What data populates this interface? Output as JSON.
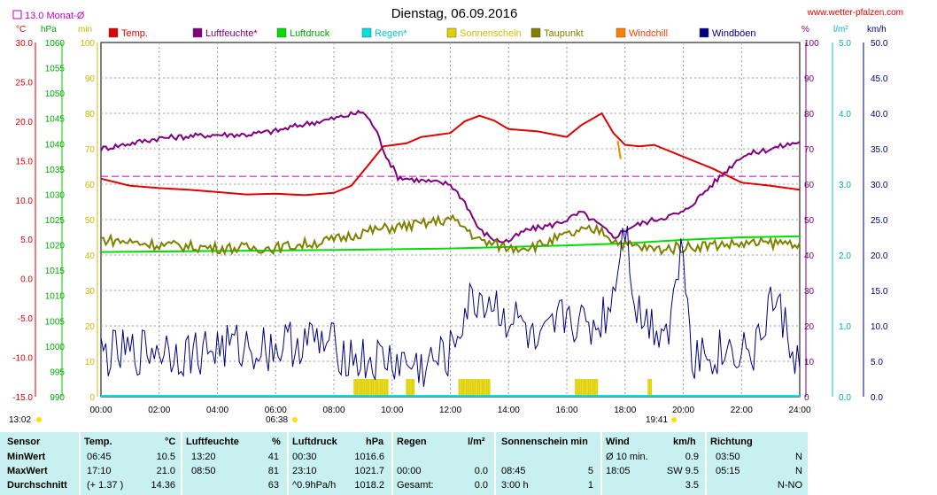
{
  "header": {
    "title": "Dienstag, 06.09.2016",
    "website": "www.wetter-pfalzen.com",
    "monthly_avg": "13.0 Monat-Ø"
  },
  "axes": {
    "temp_unit": "°C",
    "pressure_unit": "hPa",
    "minutes_unit": "min",
    "humidity_unit": "%",
    "rain_unit": "l/m²",
    "wind_unit": "km/h",
    "temp_ticks": [
      "30.0",
      "25.0",
      "20.0",
      "15.0",
      "10.0",
      "5.0",
      "0.0",
      "-5.0",
      "-10.0",
      "-15.0"
    ],
    "pressure_ticks": [
      "1060",
      "1055",
      "1050",
      "1045",
      "1040",
      "1035",
      "1030",
      "1025",
      "1020",
      "1015",
      "1010",
      "1005",
      "1000",
      "995",
      "990"
    ],
    "minutes_ticks": [
      "100",
      "90",
      "80",
      "70",
      "60",
      "50",
      "40",
      "30",
      "20",
      "10",
      "0"
    ],
    "humidity_ticks": [
      "100",
      "90",
      "80",
      "70",
      "60",
      "50",
      "40",
      "30",
      "20",
      "10",
      "0"
    ],
    "rain_ticks": [
      "5.0",
      "4.0",
      "3.0",
      "2.0",
      "1.0",
      "0.0"
    ],
    "wind_ticks": [
      "50.0",
      "45.0",
      "40.0",
      "35.0",
      "30.0",
      "25.0",
      "20.0",
      "15.0",
      "10.0",
      "5.0",
      "0.0"
    ],
    "time_ticks": [
      "00:00",
      "02:00",
      "04:00",
      "06:00",
      "08:00",
      "10:00",
      "12:00",
      "14:00",
      "16:00",
      "18:00",
      "20:00",
      "22:00",
      "24:00"
    ],
    "sunrise": "06:38",
    "sunset": "19:41",
    "day_length": "13:02"
  },
  "legend": [
    {
      "label": "Temp.",
      "color": "#e00000",
      "text_color": "#e00000"
    },
    {
      "label": "Luftfeuchte*",
      "color": "#800080",
      "text_color": "#800080"
    },
    {
      "label": "Luftdruck",
      "color": "#00dd00",
      "text_color": "#00aa00"
    },
    {
      "label": "Regen*",
      "color": "#00e0e0",
      "text_color": "#00c8c8"
    },
    {
      "label": "Sonnenschein",
      "color": "#e0d000",
      "text_color": "#d0c000"
    },
    {
      "label": "Taupunkt",
      "color": "#808000",
      "text_color": "#808000"
    },
    {
      "label": "Windchill",
      "color": "#ff8000",
      "text_color": "#ff4000"
    },
    {
      "label": "Windböen",
      "color": "#000080",
      "text_color": "#000080"
    }
  ],
  "chart_data": {
    "type": "line",
    "x_unit": "hours",
    "x_range": [
      0,
      24
    ],
    "series": [
      {
        "name": "Temp.",
        "axis": "°C",
        "points": [
          [
            0,
            12.7
          ],
          [
            1,
            11.8
          ],
          [
            2,
            11.5
          ],
          [
            3,
            11.3
          ],
          [
            4,
            11.0
          ],
          [
            5,
            10.7
          ],
          [
            6,
            10.8
          ],
          [
            7,
            10.6
          ],
          [
            8,
            10.9
          ],
          [
            8.6,
            11.8
          ],
          [
            9.2,
            14.5
          ],
          [
            9.7,
            16.8
          ],
          [
            10.5,
            17.2
          ],
          [
            11,
            18.0
          ],
          [
            12,
            18.5
          ],
          [
            12.5,
            20.0
          ],
          [
            13,
            20.7
          ],
          [
            13.5,
            20.1
          ],
          [
            14,
            19.0
          ],
          [
            15,
            18.7
          ],
          [
            16,
            18.0
          ],
          [
            16.5,
            19.5
          ],
          [
            17.2,
            21.0
          ],
          [
            17.6,
            18.5
          ],
          [
            18,
            17.0
          ],
          [
            18.5,
            16.8
          ],
          [
            19,
            17.0
          ],
          [
            20,
            15.5
          ],
          [
            21,
            14.0
          ],
          [
            22,
            12.2
          ],
          [
            23,
            11.8
          ],
          [
            24,
            11.3
          ]
        ]
      },
      {
        "name": "Luftfeuchte*",
        "axis": "%",
        "points": [
          [
            0,
            70
          ],
          [
            1,
            71.5
          ],
          [
            2,
            73
          ],
          [
            3,
            73.5
          ],
          [
            4,
            74
          ],
          [
            5,
            74
          ],
          [
            6,
            75
          ],
          [
            7,
            77
          ],
          [
            8,
            78.5
          ],
          [
            9,
            80.5
          ],
          [
            9.4,
            76
          ],
          [
            9.8,
            68
          ],
          [
            10.2,
            62
          ],
          [
            11,
            61
          ],
          [
            12,
            60
          ],
          [
            12.5,
            55
          ],
          [
            13,
            47
          ],
          [
            13.6,
            44
          ],
          [
            14,
            44
          ],
          [
            14.6,
            47
          ],
          [
            15.5,
            48.5
          ],
          [
            16,
            50
          ],
          [
            16.5,
            52
          ],
          [
            17.2,
            48
          ],
          [
            17.6,
            45
          ],
          [
            18.2,
            48
          ],
          [
            19,
            50
          ],
          [
            19.5,
            51
          ],
          [
            20,
            52
          ],
          [
            21,
            60
          ],
          [
            22,
            68
          ],
          [
            23,
            70
          ],
          [
            24,
            72
          ]
        ]
      },
      {
        "name": "Luftdruck",
        "axis": "hPa",
        "points": [
          [
            0,
            1018.6
          ],
          [
            4,
            1018.8
          ],
          [
            8,
            1019.0
          ],
          [
            12,
            1019.3
          ],
          [
            16,
            1019.9
          ],
          [
            18,
            1020.3
          ],
          [
            20,
            1021.0
          ],
          [
            22,
            1021.5
          ],
          [
            24,
            1021.7
          ]
        ]
      },
      {
        "name": "Taupunkt",
        "axis": "°C",
        "points": [
          [
            0,
            5.0
          ],
          [
            2,
            4.3
          ],
          [
            4,
            3.9
          ],
          [
            6,
            3.9
          ],
          [
            8,
            4.9
          ],
          [
            9,
            5.9
          ],
          [
            10,
            6.5
          ],
          [
            11,
            6.9
          ],
          [
            12,
            7.6
          ],
          [
            12.5,
            6.5
          ],
          [
            13,
            4.8
          ],
          [
            14,
            3.9
          ],
          [
            15,
            4.2
          ],
          [
            16,
            5.5
          ],
          [
            16.5,
            6.0
          ],
          [
            17.2,
            6.2
          ],
          [
            17.6,
            4.9
          ],
          [
            18,
            4.3
          ],
          [
            19,
            3.7
          ],
          [
            20,
            4.0
          ],
          [
            21,
            4.3
          ],
          [
            22,
            4.4
          ],
          [
            23,
            4.5
          ],
          [
            24,
            4.6
          ]
        ]
      },
      {
        "name": "Windböen",
        "axis": "km/h",
        "points": [
          [
            0,
            6
          ],
          [
            1,
            6
          ],
          [
            2,
            7
          ],
          [
            3,
            6
          ],
          [
            4,
            7
          ],
          [
            5,
            7
          ],
          [
            6,
            7
          ],
          [
            7,
            8
          ],
          [
            8,
            7
          ],
          [
            9,
            5
          ],
          [
            10,
            5
          ],
          [
            11,
            4
          ],
          [
            12,
            6
          ],
          [
            12.5,
            12
          ],
          [
            13,
            14
          ],
          [
            13.5,
            13
          ],
          [
            14,
            11
          ],
          [
            14.5,
            10
          ],
          [
            15,
            6
          ],
          [
            15.5,
            9
          ],
          [
            16,
            12
          ],
          [
            16.5,
            10
          ],
          [
            17,
            10
          ],
          [
            17.5,
            13
          ],
          [
            18,
            25
          ],
          [
            18.4,
            12
          ],
          [
            19,
            10
          ],
          [
            19.5,
            10
          ],
          [
            20,
            22
          ],
          [
            20.3,
            6
          ],
          [
            21,
            6
          ],
          [
            22,
            7
          ],
          [
            22.5,
            6
          ],
          [
            23,
            14
          ],
          [
            23.5,
            10
          ],
          [
            24,
            4
          ]
        ]
      },
      {
        "name": "Windchill",
        "axis": "°C",
        "points": [
          [
            17.75,
            17.5
          ],
          [
            17.85,
            15.2
          ]
        ]
      }
    ],
    "sunshine_minutes_blocks": [
      [
        8.7,
        9.9
      ],
      [
        10.5,
        10.8
      ],
      [
        12.3,
        13.4
      ],
      [
        16.3,
        17.1
      ],
      [
        18.8,
        18.95
      ]
    ],
    "rain_total": 0.0,
    "reference_line": {
      "name": "13.0 Monat-Ø",
      "value": 13.0,
      "axis": "°C"
    }
  },
  "stats": {
    "headers": {
      "sensor": "Sensor",
      "temp": "Temp.",
      "temp_unit": "°C",
      "hum": "Luftfeuchte",
      "hum_unit": "%",
      "press": "Luftdruck",
      "press_unit": "hPa",
      "rain": "Regen",
      "rain_unit": "l/m²",
      "sun": "Sonnenschein min",
      "wind": "Wind",
      "wind_unit": "km/h",
      "dir": "Richtung"
    },
    "rows": [
      {
        "label": "MinWert",
        "temp_time": "06:45",
        "temp_val": "10.5",
        "hum_time": "13:20",
        "hum_val": "41",
        "press_time": "00:30",
        "press_val": "1016.6",
        "rain_time": "",
        "rain_val": "",
        "sun_time": "",
        "sun_val": "",
        "wind_time": "Ø 10 min.",
        "wind_val": "0.9",
        "dir_time": "03:50",
        "dir_val": "N"
      },
      {
        "label": "MaxWert",
        "temp_time": "17:10",
        "temp_val": "21.0",
        "hum_time": "08:50",
        "hum_val": "81",
        "press_time": "23:10",
        "press_val": "1021.7",
        "rain_time": "00:00",
        "rain_val": "0.0",
        "sun_time": "08:45",
        "sun_val": "5",
        "wind_time": "18:05",
        "wind_val": "SW 9.5",
        "dir_time": "05:15",
        "dir_val": "N"
      },
      {
        "label": "Durchschnitt",
        "temp_time": "(+ 1.37 )",
        "temp_val": "14.36",
        "hum_time": "",
        "hum_val": "63",
        "press_time": "^0.9hPa/h",
        "press_val": "1018.2",
        "rain_time": "Gesamt:",
        "rain_val": "0.0",
        "sun_time": "3:00 h",
        "sun_val": "1",
        "wind_time": "",
        "wind_val": "3.5",
        "dir_time": "",
        "dir_val": "N-NO"
      }
    ]
  }
}
